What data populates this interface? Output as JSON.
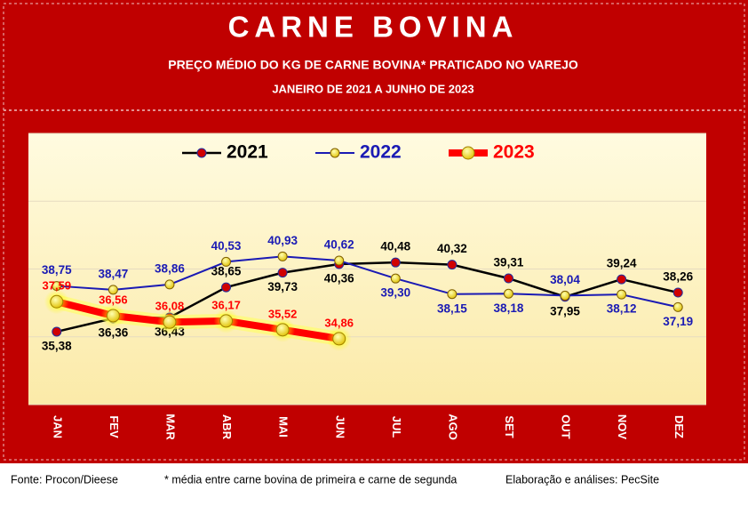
{
  "chart_data": {
    "type": "line",
    "title": "CARNE BOVINA",
    "subtitle": "PREÇO MÉDIO DO KG DE CARNE BOVINA* PRATICADO NO VAREJO",
    "period": "JANEIRO DE 2021 A JUNHO DE 2023",
    "categories": [
      "JAN",
      "FEV",
      "MAR",
      "ABR",
      "MAI",
      "JUN",
      "JUL",
      "AGO",
      "SET",
      "OUT",
      "NOV",
      "DEZ"
    ],
    "series": [
      {
        "name": "2021",
        "color": "#000000",
        "values": [
          35.38,
          36.36,
          36.43,
          38.65,
          39.73,
          40.36,
          40.48,
          40.32,
          39.31,
          37.95,
          39.24,
          38.26
        ],
        "value_labels": [
          "35,38",
          "36,36",
          "36,43",
          "38,65",
          "39,73",
          "40,36",
          "40,48",
          "40,32",
          "39,31",
          "37,95",
          "39,24",
          "38,26"
        ]
      },
      {
        "name": "2022",
        "color": "#1a1ab4",
        "values": [
          38.75,
          38.47,
          38.86,
          40.53,
          40.93,
          40.62,
          39.3,
          38.15,
          38.18,
          38.04,
          38.12,
          37.19
        ],
        "value_labels": [
          "38,75",
          "38,47",
          "38,86",
          "40,53",
          "40,93",
          "40,62",
          "39,30",
          "38,15",
          "38,18",
          "38,04",
          "38,12",
          "37,19"
        ]
      },
      {
        "name": "2023",
        "color": "#ff0000",
        "values": [
          37.59,
          36.56,
          36.08,
          36.17,
          35.52,
          34.86,
          null,
          null,
          null,
          null,
          null,
          null
        ],
        "value_labels": [
          "37,59",
          "36,56",
          "36,08",
          "36,17",
          "35,52",
          "34,86",
          null,
          null,
          null,
          null,
          null,
          null
        ]
      }
    ],
    "ylim": [
      30,
      50
    ],
    "yticks": [
      30,
      35,
      40,
      45,
      50
    ],
    "grid": true,
    "legend": "top",
    "footer": {
      "source": "Fonte: Procon/Dieese",
      "note": "* média entre carne bovina de primeira e carne de segunda",
      "credit": "Elaboração e análises: PecSite"
    }
  }
}
